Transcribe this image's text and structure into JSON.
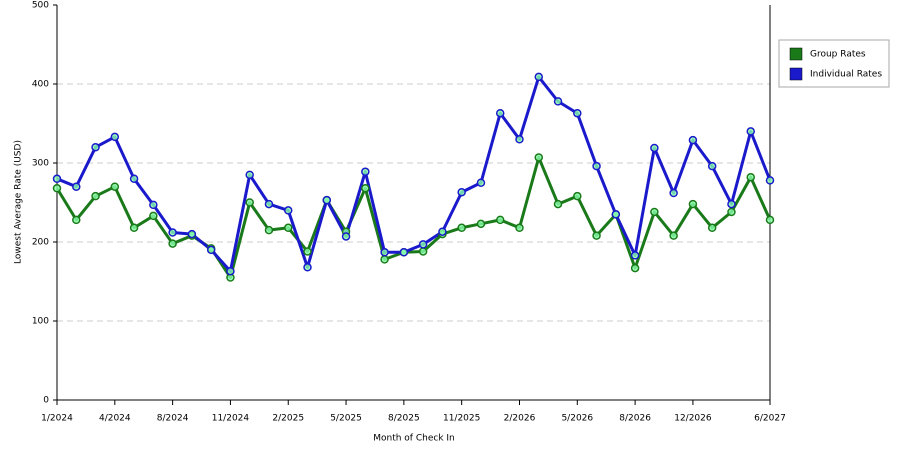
{
  "chart_data": {
    "type": "line",
    "x_label": "Month of Check In",
    "y_label": "Lowest Average Rate (USD)",
    "categories": [
      "1/2024",
      null,
      null,
      "4/2024",
      null,
      null,
      "8/2024",
      null,
      null,
      "11/2024",
      null,
      null,
      "2/2025",
      null,
      null,
      "5/2025",
      null,
      null,
      "8/2025",
      null,
      null,
      "11/2025",
      null,
      null,
      "2/2026",
      null,
      null,
      "5/2026",
      null,
      null,
      "8/2026",
      null,
      null,
      "12/2026",
      null,
      null,
      null,
      "6/2027"
    ],
    "series": [
      {
        "name": "Group Rates",
        "color": "#1a7a1a",
        "values": [
          268,
          228,
          258,
          270,
          218,
          233,
          198,
          208,
          192,
          155,
          250,
          215,
          218,
          188,
          253,
          213,
          268,
          178,
          187,
          188,
          210,
          218,
          223,
          228,
          218,
          307,
          248,
          258,
          208,
          235,
          167,
          238,
          208,
          248,
          218,
          238,
          282,
          228
        ]
      },
      {
        "name": "Individual Rates",
        "color": "#1a1acc",
        "values": [
          280,
          270,
          320,
          333,
          280,
          247,
          212,
          210,
          190,
          163,
          285,
          248,
          240,
          168,
          253,
          207,
          289,
          187,
          187,
          197,
          213,
          263,
          275,
          363,
          330,
          409,
          378,
          363,
          296,
          235,
          183,
          319,
          262,
          329,
          296,
          248,
          340,
          278
        ]
      }
    ],
    "ylim": [
      0,
      500
    ],
    "yticks": [
      0,
      100,
      200,
      300,
      400,
      500
    ],
    "grid": true,
    "legend": "right"
  }
}
